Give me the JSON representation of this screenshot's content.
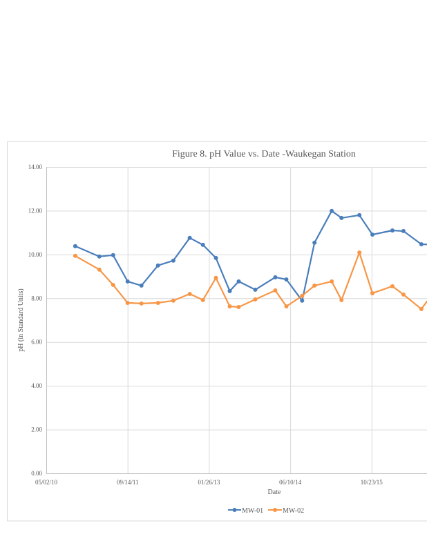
{
  "chart_data": {
    "type": "line",
    "title": "Figure 8. pH Value vs. Date -Waukegan  Station",
    "xlabel": "Date",
    "ylabel": "pH (in Standard Units)",
    "ylim": [
      0,
      14
    ],
    "yticks": [
      "0.00",
      "2.00",
      "4.00",
      "6.00",
      "8.00",
      "10.00",
      "12.00",
      "14.00"
    ],
    "xticks": [
      "05/02/10",
      "09/14/11",
      "01/26/13",
      "06/10/14",
      "10/23/15"
    ],
    "xlim_start": "2010-05-02",
    "xtick_interval_days": 500,
    "grid": true,
    "legend_position": "bottom",
    "x": [
      "2010-10-27",
      "2011-03-24",
      "2011-06-17",
      "2011-09-14",
      "2011-12-08",
      "2012-03-19",
      "2012-06-21",
      "2012-09-30",
      "2012-12-20",
      "2013-03-10",
      "2013-06-03",
      "2013-07-28",
      "2013-11-07",
      "2014-03-10",
      "2014-05-17",
      "2014-08-22",
      "2014-11-06",
      "2015-02-20",
      "2015-04-21",
      "2015-08-09",
      "2015-10-28",
      "2016-02-28",
      "2016-05-06",
      "2016-08-24",
      "2016-11-27"
    ],
    "series": [
      {
        "name": "MW-01",
        "color": "#4a7ebb",
        "values": [
          10.38,
          9.91,
          9.97,
          8.77,
          8.58,
          9.5,
          9.72,
          10.76,
          10.44,
          9.84,
          8.33,
          8.77,
          8.39,
          8.96,
          8.86,
          7.89,
          10.54,
          11.99,
          11.67,
          11.8,
          10.91,
          11.1,
          11.07,
          10.47,
          10.45
        ]
      },
      {
        "name": "MW-02",
        "color": "#f79646",
        "values": [
          9.94,
          9.31,
          8.61,
          7.79,
          7.76,
          7.79,
          7.89,
          8.2,
          7.92,
          8.93,
          7.63,
          7.6,
          7.95,
          8.36,
          7.63,
          8.11,
          8.58,
          8.77,
          7.92,
          10.09,
          8.23,
          8.55,
          8.17,
          7.51,
          8.45
        ]
      }
    ]
  }
}
